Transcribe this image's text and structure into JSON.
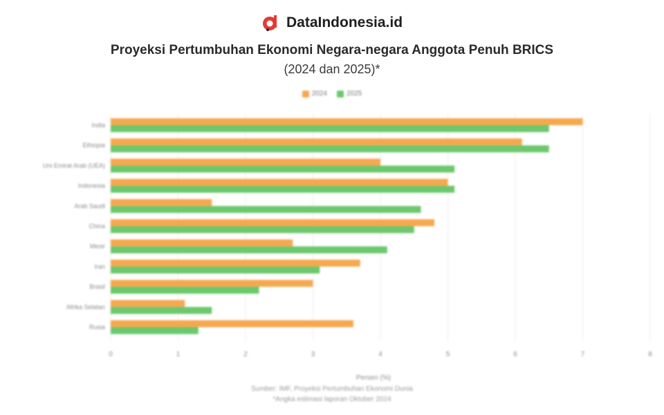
{
  "brand": {
    "name": "DataIndonesia.id"
  },
  "header": {
    "title": "Proyeksi Pertumbuhan Ekonomi Negara-negara Anggota Penuh BRICS",
    "subtitle": "(2024 dan 2025)*"
  },
  "colors": {
    "orange": "#f5a84e",
    "green": "#6cc86c",
    "grid": "#ececec",
    "text": "#8a8a8a"
  },
  "chart_data": {
    "type": "bar",
    "orientation": "horizontal",
    "categories": [
      "India",
      "Ethiopia",
      "Uni Emirat Arab (UEA)",
      "Indonesia",
      "Arab Saudi",
      "China",
      "Mesir",
      "Iran",
      "Brasil",
      "Afrika Selatan",
      "Rusia"
    ],
    "series": [
      {
        "name": "2024",
        "color": "#f5a84e",
        "values": [
          7.0,
          6.1,
          4.0,
          5.0,
          1.5,
          4.8,
          2.7,
          3.7,
          3.0,
          1.1,
          3.6
        ]
      },
      {
        "name": "2025",
        "color": "#6cc86c",
        "values": [
          6.5,
          6.5,
          5.1,
          5.1,
          4.6,
          4.5,
          4.1,
          3.1,
          2.2,
          1.5,
          1.3
        ]
      }
    ],
    "xlim": [
      0,
      8
    ],
    "xticks": [
      "0",
      "1",
      "2",
      "3",
      "4",
      "5",
      "6",
      "7",
      "8"
    ],
    "xlabel": "Persen (%)",
    "grid": true,
    "legend": "top-center"
  },
  "footer": {
    "line1": "Sumber: IMF, Proyeksi Pertumbuhan Ekonomi Dunia",
    "line2": "*Angka estimasi laporan Oktober 2024"
  }
}
